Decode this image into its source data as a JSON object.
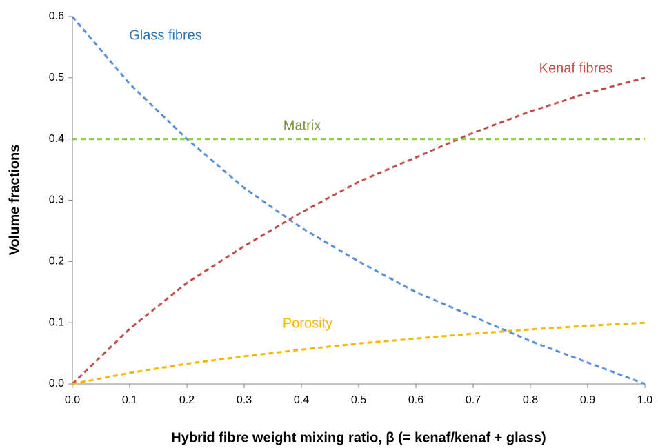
{
  "chart_data": {
    "type": "line",
    "xlabel": "Hybrid fibre weight mixing ratio, β (= kenaf/kenaf + glass)",
    "ylabel": "Volume fractions",
    "x": [
      0,
      0.1,
      0.2,
      0.3,
      0.4,
      0.5,
      0.6,
      0.7,
      0.8,
      0.9,
      1.0
    ],
    "series": [
      {
        "name": "Glass fibres",
        "color": "#5b8fd6",
        "label_color": "#2e75b6",
        "values": [
          0.6,
          0.49,
          0.4,
          0.32,
          0.255,
          0.2,
          0.15,
          0.11,
          0.07,
          0.035,
          0
        ]
      },
      {
        "name": "Kenaf fibres",
        "color": "#c0504d",
        "label_color": "#c0504d",
        "values": [
          0,
          0.09,
          0.165,
          0.225,
          0.28,
          0.33,
          0.37,
          0.41,
          0.445,
          0.475,
          0.5
        ]
      },
      {
        "name": "Matrix",
        "color": "#8cc63f",
        "label_color": "#77933c",
        "values": [
          0.4,
          0.4,
          0.4,
          0.4,
          0.4,
          0.4,
          0.4,
          0.4,
          0.4,
          0.4,
          0.4
        ]
      },
      {
        "name": "Porosity",
        "color": "#f5b800",
        "label_color": "#f5b800",
        "values": [
          0,
          0.018,
          0.033,
          0.045,
          0.056,
          0.066,
          0.074,
          0.082,
          0.089,
          0.095,
          0.1
        ]
      }
    ],
    "xlim": [
      0,
      1.0
    ],
    "xticks": [
      {
        "value": 0,
        "label": "0.0"
      },
      0.1,
      0.2,
      0.3,
      0.4,
      0.5,
      0.6,
      0.7,
      0.8,
      0.9,
      {
        "value": 1.0,
        "label": "1.0"
      }
    ],
    "ylim": [
      0,
      0.6
    ],
    "yticks": [
      {
        "value": 0,
        "label": "0.0"
      },
      0.1,
      0.2,
      0.3,
      0.4,
      0.5,
      0.6
    ],
    "grid": false,
    "line_style": "dashed"
  }
}
